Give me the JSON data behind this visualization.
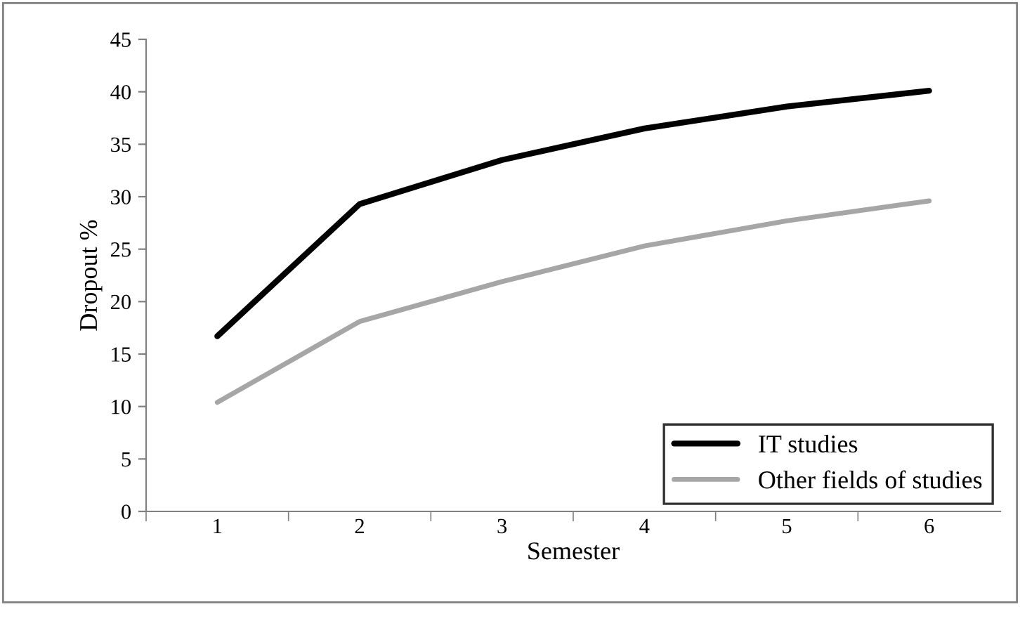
{
  "chart_data": {
    "type": "line",
    "xlabel": "Semester",
    "ylabel": "Dropout %",
    "categories": [
      "1",
      "2",
      "3",
      "4",
      "5",
      "6"
    ],
    "series": [
      {
        "name": "IT studies",
        "color": "#000000",
        "values": [
          16.7,
          29.3,
          33.5,
          36.5,
          38.6,
          40.1
        ]
      },
      {
        "name": "Other fields of studies",
        "color": "#a6a6a6",
        "values": [
          10.4,
          18.1,
          21.9,
          25.3,
          27.7,
          29.6
        ]
      }
    ],
    "ylim": [
      0,
      45
    ],
    "yticks": [
      0,
      5,
      10,
      15,
      20,
      25,
      30,
      35,
      40,
      45
    ],
    "grid": false,
    "legend": "bottom right",
    "marker": "none",
    "line_style": "solid"
  }
}
